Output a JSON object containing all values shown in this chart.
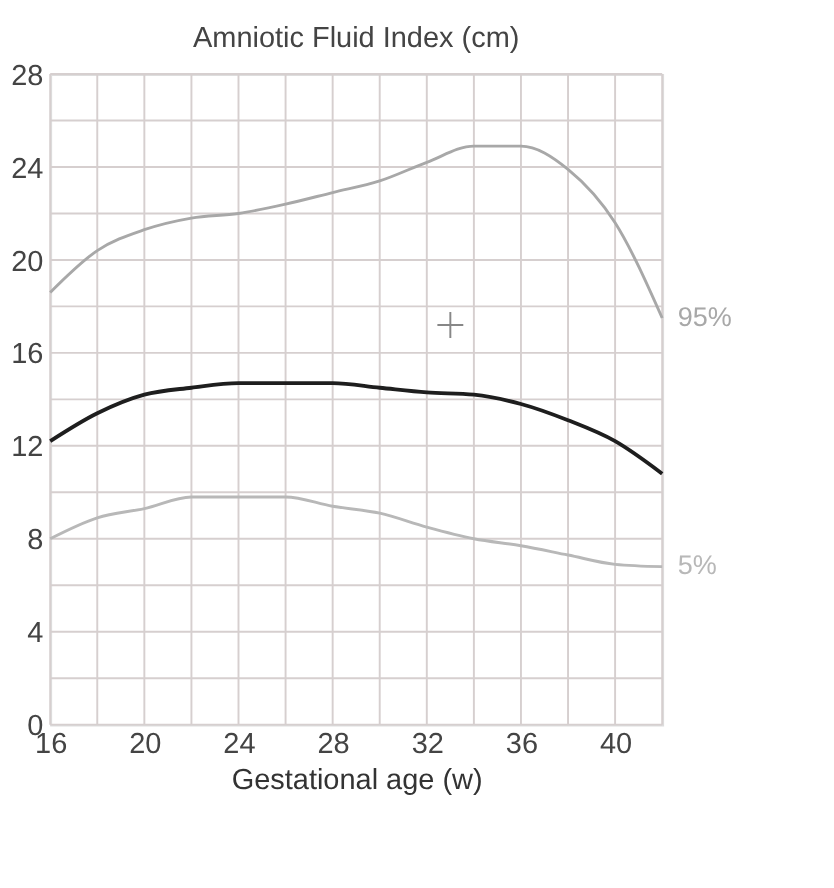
{
  "chart_data": {
    "type": "line",
    "title": "Amniotic Fluid Index (cm)",
    "xlabel": "Gestational age (w)",
    "x": [
      16,
      18,
      20,
      22,
      24,
      26,
      28,
      30,
      32,
      34,
      36,
      38,
      40,
      42
    ],
    "series": [
      {
        "name": "95%",
        "color": "#a8a8a8",
        "values": [
          18.6,
          20.4,
          21.3,
          21.8,
          22.0,
          22.4,
          22.9,
          23.4,
          24.2,
          24.9,
          24.9,
          23.9,
          21.6,
          17.5
        ]
      },
      {
        "color": "#1e1e1e",
        "values": [
          12.2,
          13.4,
          14.2,
          14.5,
          14.7,
          14.7,
          14.7,
          14.5,
          14.3,
          14.2,
          13.8,
          13.1,
          12.2,
          10.8
        ]
      },
      {
        "name": "5%",
        "color": "#b8b8b8",
        "values": [
          8.0,
          8.9,
          9.3,
          9.8,
          9.8,
          9.8,
          9.4,
          9.1,
          8.5,
          8.0,
          7.7,
          7.3,
          6.9,
          6.8
        ]
      },
      {
        "type": "scatter",
        "marker": "cross",
        "color": "#555555",
        "x": [
          33
        ],
        "values": [
          17.2
        ]
      }
    ],
    "xlim": [
      16,
      42
    ],
    "ylim": [
      0,
      28
    ],
    "xticks": [
      16,
      {
        "value": 18,
        "label": null
      },
      20,
      {
        "value": 22,
        "label": null
      },
      24,
      {
        "value": 26,
        "label": null
      },
      28,
      {
        "value": 30,
        "label": null
      },
      32,
      {
        "value": 34,
        "label": null
      },
      36,
      {
        "value": 38,
        "label": null
      },
      40,
      {
        "value": 42,
        "label": null
      }
    ],
    "yticks": [
      0,
      {
        "value": 2,
        "label": null
      },
      4,
      {
        "value": 6,
        "label": null
      },
      8,
      {
        "value": 10,
        "label": null
      },
      12,
      {
        "value": 14,
        "label": null
      },
      16,
      {
        "value": 18,
        "label": null
      },
      20,
      {
        "value": 22,
        "label": null
      },
      24,
      {
        "value": 26,
        "label": null
      },
      28
    ],
    "grid": true,
    "line_style": "solid"
  }
}
